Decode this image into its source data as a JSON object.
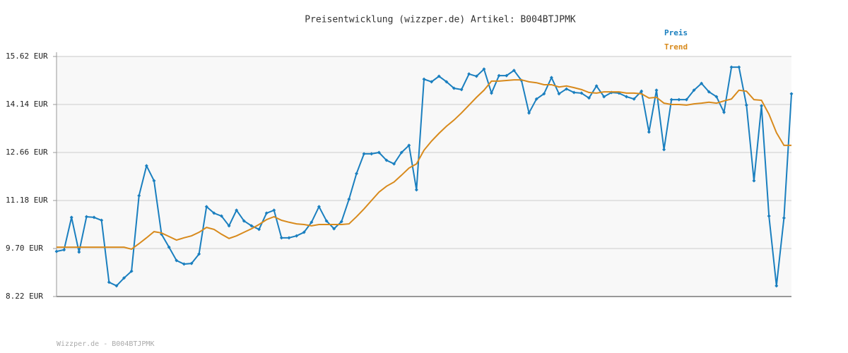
{
  "chart_data": {
    "type": "line",
    "title": "Preisentwicklung (wizzper.de) Artikel: B004BTJPMK",
    "footer": "Wizzper.de - B004BTJPMK",
    "ylim": [
      8.22,
      15.62
    ],
    "yticks": [
      {
        "value": 8.22,
        "label": "8.22 EUR"
      },
      {
        "value": 9.7,
        "label": "9.70 EUR"
      },
      {
        "value": 11.18,
        "label": "11.18 EUR"
      },
      {
        "value": 12.66,
        "label": "12.66 EUR"
      },
      {
        "value": 14.14,
        "label": "14.14 EUR"
      },
      {
        "value": 15.62,
        "label": "15.62 EUR"
      }
    ],
    "grid": true,
    "legend": "top-right",
    "series": [
      {
        "name": "Preis",
        "color": "#1a7fbf",
        "markers": true,
        "values": [
          9.61,
          9.66,
          10.66,
          9.59,
          10.68,
          10.66,
          10.57,
          8.66,
          8.55,
          8.79,
          9.0,
          11.33,
          12.25,
          11.79,
          10.14,
          9.74,
          9.33,
          9.22,
          9.24,
          9.53,
          10.99,
          10.79,
          10.7,
          10.4,
          10.88,
          10.55,
          10.4,
          10.29,
          10.79,
          10.88,
          10.03,
          10.03,
          10.09,
          10.2,
          10.51,
          10.99,
          10.55,
          10.31,
          10.53,
          11.22,
          12.01,
          12.62,
          12.62,
          12.66,
          12.42,
          12.31,
          12.66,
          12.88,
          11.51,
          14.92,
          14.84,
          15.01,
          14.84,
          14.64,
          14.6,
          15.08,
          15.01,
          15.23,
          14.49,
          15.03,
          15.03,
          15.19,
          14.88,
          13.88,
          14.31,
          14.47,
          14.97,
          14.47,
          14.62,
          14.51,
          14.49,
          14.34,
          14.71,
          14.38,
          14.51,
          14.49,
          14.38,
          14.31,
          14.55,
          13.29,
          14.58,
          12.75,
          14.29,
          14.29,
          14.29,
          14.58,
          14.79,
          14.53,
          14.38,
          13.9,
          15.29,
          15.29,
          14.12,
          11.79,
          14.1,
          10.7,
          8.55,
          10.64,
          14.47
        ]
      },
      {
        "name": "Trend",
        "color": "#d88a1c",
        "markers": false,
        "values": [
          9.74,
          9.74,
          9.74,
          9.74,
          9.74,
          9.74,
          9.74,
          9.74,
          9.74,
          9.74,
          9.68,
          9.85,
          10.03,
          10.22,
          10.18,
          10.07,
          9.96,
          10.03,
          10.09,
          10.2,
          10.35,
          10.29,
          10.14,
          10.01,
          10.09,
          10.2,
          10.31,
          10.44,
          10.59,
          10.68,
          10.57,
          10.51,
          10.46,
          10.44,
          10.4,
          10.44,
          10.44,
          10.44,
          10.44,
          10.46,
          10.68,
          10.92,
          11.18,
          11.44,
          11.62,
          11.75,
          11.96,
          12.18,
          12.31,
          12.73,
          13.01,
          13.25,
          13.47,
          13.66,
          13.88,
          14.12,
          14.36,
          14.58,
          14.86,
          14.86,
          14.88,
          14.9,
          14.9,
          14.84,
          14.81,
          14.75,
          14.75,
          14.68,
          14.71,
          14.66,
          14.6,
          14.51,
          14.49,
          14.53,
          14.53,
          14.53,
          14.49,
          14.49,
          14.47,
          14.34,
          14.36,
          14.18,
          14.14,
          14.14,
          14.12,
          14.16,
          14.18,
          14.21,
          14.18,
          14.25,
          14.31,
          14.58,
          14.55,
          14.29,
          14.27,
          13.84,
          13.27,
          12.88,
          12.88
        ]
      }
    ]
  }
}
